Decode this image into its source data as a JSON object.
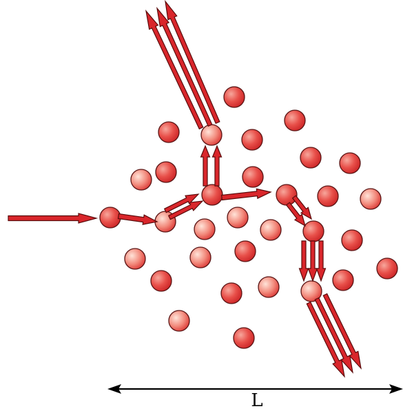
{
  "diagram": {
    "length_label": "L",
    "colors": {
      "arrow_fill": "#d9262b",
      "arrow_stroke": "#5a0b0b",
      "sphere_light": "#ffe3d8",
      "sphere_mid": "#f28a7c",
      "sphere_dark": "#d9302e",
      "sphere_stroke": "#5a1515"
    }
  }
}
